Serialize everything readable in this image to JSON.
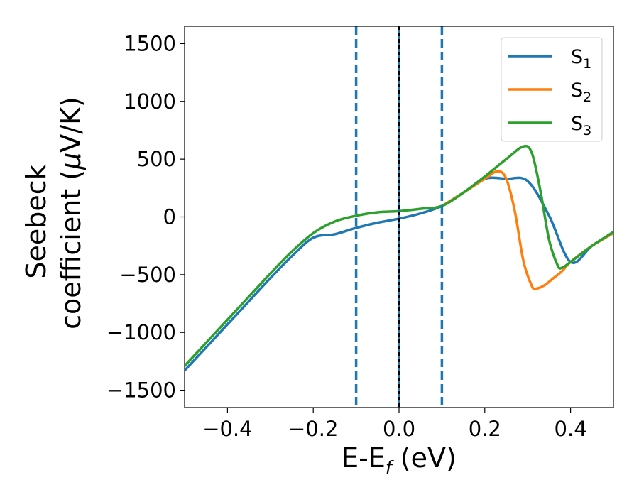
{
  "chart_data": {
    "type": "line",
    "xlabel_main": "E-E",
    "xlabel_sub": "f",
    "xlabel_unit": " (eV)",
    "ylabel_line1": "Seebeck",
    "ylabel_line2_pre": "coefficient  (",
    "ylabel_line2_mu": "μ",
    "ylabel_line2_post": "V/K)",
    "xlim": [
      -0.5,
      0.5
    ],
    "ylim": [
      -1650,
      1650
    ],
    "xticks": [
      -0.4,
      -0.2,
      0.0,
      0.2,
      0.4
    ],
    "xtick_labels": [
      "−0.4",
      "−0.2",
      "0.0",
      "0.2",
      "0.4"
    ],
    "yticks": [
      -1500,
      -1000,
      -500,
      0,
      500,
      1000,
      1500
    ],
    "ytick_labels": [
      "−1500",
      "−1000",
      "−500",
      "0",
      "500",
      "1000",
      "1500"
    ],
    "grid": false,
    "legend": "top-right",
    "vertical_lines": [
      {
        "x": -0.1,
        "style": "dashed",
        "color": "#1f77b4"
      },
      {
        "x": 0.1,
        "style": "dashed",
        "color": "#1f77b4"
      },
      {
        "x": 0.0,
        "style": "solid",
        "color": "#1f77b4"
      },
      {
        "x": 0.0,
        "style": "dotted",
        "color": "#000000"
      }
    ],
    "series": [
      {
        "name": "S",
        "sub": "1",
        "color": "#1f77b4",
        "x": [
          -0.5,
          -0.45,
          -0.4,
          -0.35,
          -0.3,
          -0.25,
          -0.2,
          -0.15,
          -0.1,
          -0.05,
          0.0,
          0.05,
          0.1,
          0.15,
          0.2,
          0.25,
          0.3,
          0.35,
          0.4,
          0.45,
          0.5
        ],
        "y": [
          -1330,
          -1130,
          -930,
          -730,
          -530,
          -340,
          -180,
          -150,
          -95,
          -50,
          -15,
          30,
          95,
          210,
          330,
          330,
          310,
          10,
          -390,
          -250,
          -140
        ]
      },
      {
        "name": "S",
        "sub": "2",
        "color": "#ff7f0e",
        "x": [
          0.1,
          0.15,
          0.2,
          0.23,
          0.25,
          0.27,
          0.29,
          0.31,
          0.32,
          0.34,
          0.36,
          0.38,
          0.4,
          0.45,
          0.5
        ],
        "y": [
          95,
          210,
          330,
          395,
          330,
          50,
          -380,
          -600,
          -620,
          -590,
          -530,
          -470,
          -390,
          -250,
          -140
        ]
      },
      {
        "name": "S",
        "sub": "3",
        "color": "#2ca02c",
        "x": [
          -0.5,
          -0.45,
          -0.4,
          -0.35,
          -0.3,
          -0.25,
          -0.2,
          -0.15,
          -0.1,
          -0.05,
          0.0,
          0.05,
          0.1,
          0.15,
          0.2,
          0.25,
          0.29,
          0.31,
          0.33,
          0.35,
          0.37,
          0.38,
          0.4,
          0.45,
          0.5
        ],
        "y": [
          -1290,
          -1090,
          -890,
          -690,
          -490,
          -300,
          -140,
          -40,
          10,
          40,
          50,
          70,
          95,
          210,
          350,
          500,
          610,
          550,
          220,
          -200,
          -420,
          -440,
          -390,
          -250,
          -130
        ]
      }
    ]
  }
}
